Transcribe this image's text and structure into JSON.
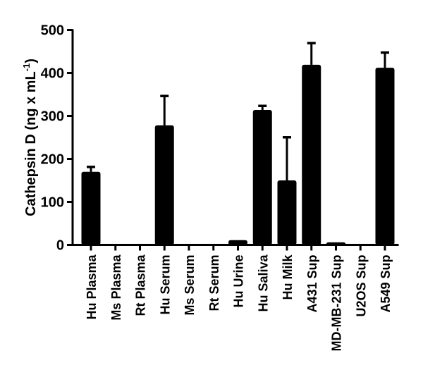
{
  "chart_data": {
    "type": "bar",
    "title": "",
    "xlabel": "",
    "ylabel": "Cathepsin D (ng x mL",
    "ylabel_superscript": "-1",
    "ylabel_close": ")",
    "ylim": [
      0,
      500
    ],
    "yticks": [
      0,
      100,
      200,
      300,
      400,
      500
    ],
    "categories": [
      "Hu Plasma",
      "Ms Plasma",
      "Rt Plasma",
      "Hu Serum",
      "Ms Serum",
      "Rt Serum",
      "Hu Urine",
      "Hu Saliva",
      "Hu Milk",
      "A431 Sup",
      "MD-MB-231 Sup",
      "U2OS Sup",
      "A549 Sup"
    ],
    "values": [
      170,
      1,
      1,
      278,
      1,
      1,
      11,
      314,
      150,
      419,
      6,
      1,
      412
    ],
    "error_upper": [
      183,
      null,
      null,
      348,
      null,
      null,
      null,
      325,
      252,
      471,
      null,
      null,
      449
    ],
    "bar_color": "#000000",
    "grid": false
  }
}
